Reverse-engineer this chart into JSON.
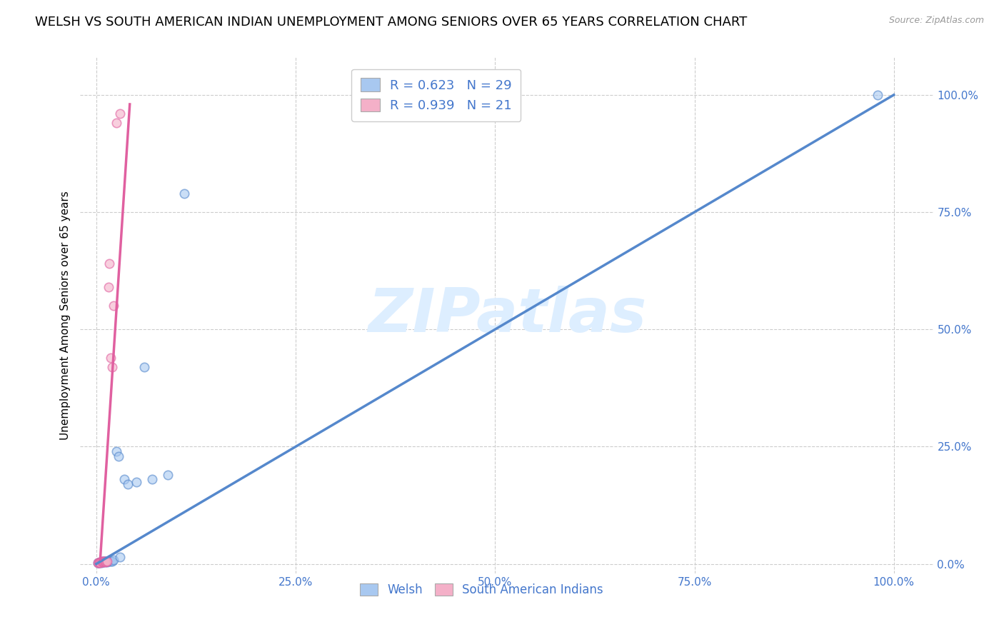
{
  "title": "WELSH VS SOUTH AMERICAN INDIAN UNEMPLOYMENT AMONG SENIORS OVER 65 YEARS CORRELATION CHART",
  "source": "Source: ZipAtlas.com",
  "ylabel": "Unemployment Among Seniors over 65 years",
  "welsh_R": 0.623,
  "welsh_N": 29,
  "sam_R": 0.939,
  "sam_N": 21,
  "welsh_color": "#a8c8f0",
  "welsh_line_color": "#5588cc",
  "sam_color": "#f4b0c8",
  "sam_line_color": "#e060a0",
  "text_color": "#4477cc",
  "watermark": "ZIPatlas",
  "background_color": "#ffffff",
  "welsh_x": [
    0.002,
    0.003,
    0.004,
    0.005,
    0.006,
    0.007,
    0.008,
    0.009,
    0.01,
    0.011,
    0.012,
    0.013,
    0.014,
    0.015,
    0.016,
    0.018,
    0.02,
    0.022,
    0.025,
    0.028,
    0.03,
    0.035,
    0.04,
    0.05,
    0.06,
    0.07,
    0.09,
    0.11,
    0.98
  ],
  "welsh_y": [
    0.002,
    0.003,
    0.003,
    0.004,
    0.003,
    0.005,
    0.004,
    0.005,
    0.006,
    0.004,
    0.005,
    0.006,
    0.004,
    0.005,
    0.007,
    0.005,
    0.006,
    0.008,
    0.24,
    0.23,
    0.015,
    0.18,
    0.17,
    0.175,
    0.42,
    0.18,
    0.19,
    0.79,
    1.0
  ],
  "sam_x": [
    0.002,
    0.003,
    0.004,
    0.005,
    0.005,
    0.006,
    0.007,
    0.008,
    0.009,
    0.01,
    0.011,
    0.012,
    0.013,
    0.014,
    0.015,
    0.016,
    0.018,
    0.02,
    0.022,
    0.025,
    0.03
  ],
  "sam_y": [
    0.002,
    0.003,
    0.003,
    0.004,
    0.003,
    0.005,
    0.004,
    0.005,
    0.004,
    0.005,
    0.006,
    0.004,
    0.005,
    0.006,
    0.59,
    0.64,
    0.44,
    0.42,
    0.55,
    0.94,
    0.96
  ],
  "blue_line_x": [
    0.0,
    1.0
  ],
  "blue_line_y": [
    0.0,
    1.0
  ],
  "pink_line_x": [
    0.005,
    0.042
  ],
  "pink_line_y": [
    0.01,
    0.98
  ],
  "xlim": [
    -0.02,
    1.05
  ],
  "ylim": [
    -0.02,
    1.08
  ],
  "xticks": [
    0.0,
    0.25,
    0.5,
    0.75,
    1.0
  ],
  "yticks": [
    0.0,
    0.25,
    0.5,
    0.75,
    1.0
  ],
  "xticklabels": [
    "0.0%",
    "25.0%",
    "50.0%",
    "75.0%",
    "100.0%"
  ],
  "yticklabels": [
    "0.0%",
    "25.0%",
    "50.0%",
    "75.0%",
    "100.0%"
  ],
  "grid_color": "#cccccc",
  "title_fontsize": 13,
  "axis_label_fontsize": 11,
  "tick_fontsize": 11,
  "marker_size": 80,
  "grid_linestyle": "--"
}
